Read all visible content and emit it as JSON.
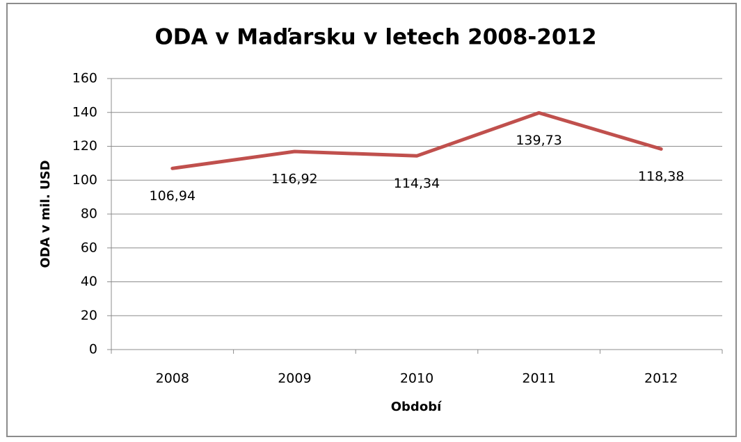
{
  "chart_data": {
    "type": "line",
    "title": "ODA v Maďarsku v letech 2008-2012",
    "x_label": "Období",
    "y_label": "ODA v mil. USD",
    "categories": [
      "2008",
      "2009",
      "2010",
      "2011",
      "2012"
    ],
    "series": [
      {
        "name": "ODA",
        "color": "#c0504d",
        "values": [
          106.94,
          116.92,
          114.34,
          139.73,
          118.38
        ],
        "value_labels": [
          "106,94",
          "116,92",
          "114,34",
          "139,73",
          "118,38"
        ]
      }
    ],
    "ylim": [
      0,
      160
    ],
    "yticks": [
      0,
      20,
      40,
      60,
      80,
      100,
      120,
      140,
      160
    ],
    "grid": true
  }
}
